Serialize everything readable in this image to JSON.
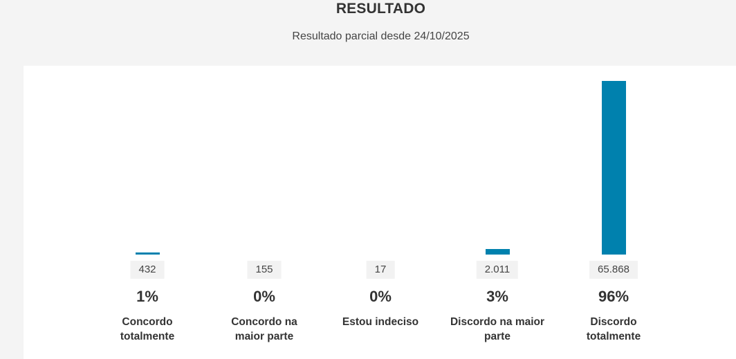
{
  "header": {
    "title": "RESULTADO",
    "subtitle": "Resultado parcial desde 24/10/2025"
  },
  "colors": {
    "bar": "#0081ae",
    "panel": "#ffffff",
    "background": "#f4f4f4"
  },
  "chart_data": {
    "type": "bar",
    "categories": [
      "Concordo totalmente",
      "Concordo na maior parte",
      "Estou indeciso",
      "Discordo na maior parte",
      "Discordo totalmente"
    ],
    "values": [
      432,
      155,
      17,
      2011,
      65868
    ],
    "value_labels": [
      "432",
      "155",
      "17",
      "2.011",
      "65.868"
    ],
    "percent_labels": [
      "1%",
      "0%",
      "0%",
      "3%",
      "96%"
    ],
    "ylim": [
      0,
      65868
    ],
    "grid": false
  }
}
